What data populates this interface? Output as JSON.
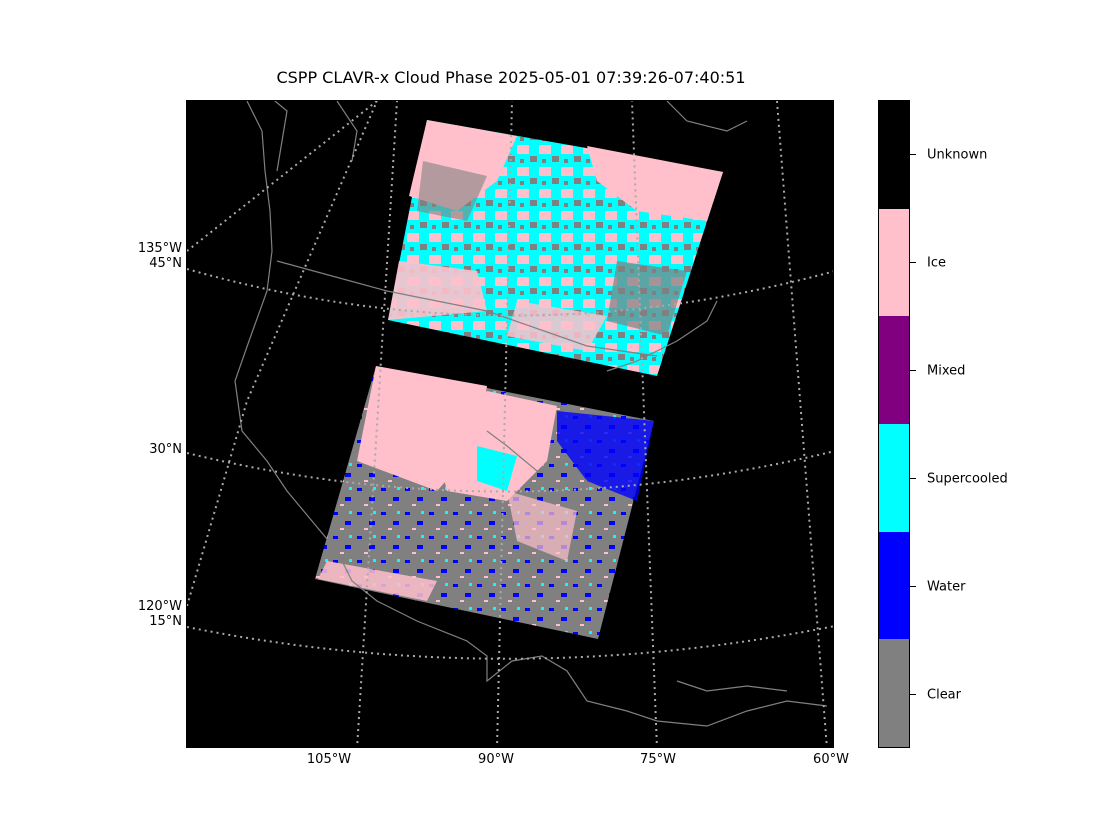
{
  "title": "CSPP CLAVR-x Cloud Phase 2025-05-01 07:39:26-07:40:51",
  "x_ticks": [
    "105°W",
    "90°W",
    "75°W",
    "60°W"
  ],
  "y_ticks": [
    {
      "lon": "135°W",
      "lat": "45°N"
    },
    {
      "lat": "30°N"
    },
    {
      "lon": "120°W",
      "lat": "15°N"
    }
  ],
  "colorbar": {
    "categories": [
      "Unknown",
      "Ice",
      "Mixed",
      "Supercooled",
      "Water",
      "Clear"
    ],
    "colors": [
      "#000000",
      "#ffc0cb",
      "#800080",
      "#00ffff",
      "#0000ff",
      "#808080"
    ]
  },
  "colors": {
    "background": "#000000",
    "coastline": "#808080",
    "gridline": "#aaaaaa",
    "clear": "#808080",
    "water": "#0000ff",
    "supercooled": "#00ffff",
    "ice": "#ffc0cb"
  }
}
